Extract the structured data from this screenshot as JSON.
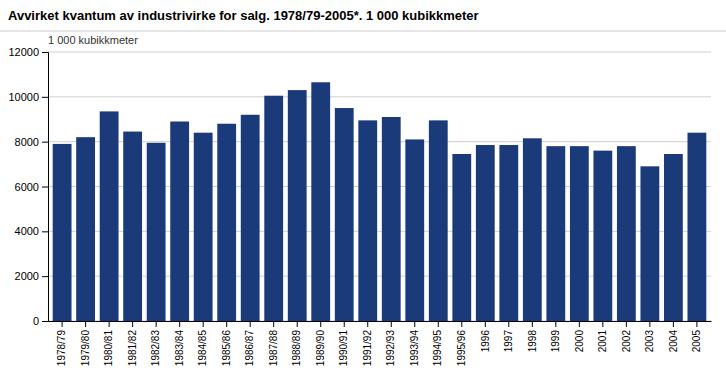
{
  "chart_data": {
    "type": "bar",
    "title": "Avvirket kvantum av industrivirke for salg. 1978/79-2005*. 1 000 kubikkmeter",
    "ylabel": "1 000 kubikkmeter",
    "categories": [
      "1978/79",
      "1979/80",
      "1980/81",
      "1981/82",
      "1982/83",
      "1983/84",
      "1984/85",
      "1985/86",
      "1986/87",
      "1987/88",
      "1988/89",
      "1989/90",
      "1990/91",
      "1991/92",
      "1992/93",
      "1993/94",
      "1994/95",
      "1995/96",
      "1996",
      "1997",
      "1998",
      "1999",
      "2000",
      "2001",
      "2002",
      "2003",
      "2004",
      "2005"
    ],
    "values": [
      7900,
      8200,
      9350,
      8450,
      7950,
      8900,
      8400,
      8800,
      9200,
      10050,
      10300,
      10650,
      9500,
      8950,
      9100,
      8100,
      8950,
      7450,
      7850,
      7850,
      8150,
      7800,
      7800,
      7600,
      7800,
      6900,
      7450,
      8400
    ],
    "color": "#1a3a7a",
    "ylim": [
      0,
      12000
    ],
    "yticks": [
      0,
      2000,
      4000,
      6000,
      8000,
      10000,
      12000
    ],
    "grid": true
  }
}
